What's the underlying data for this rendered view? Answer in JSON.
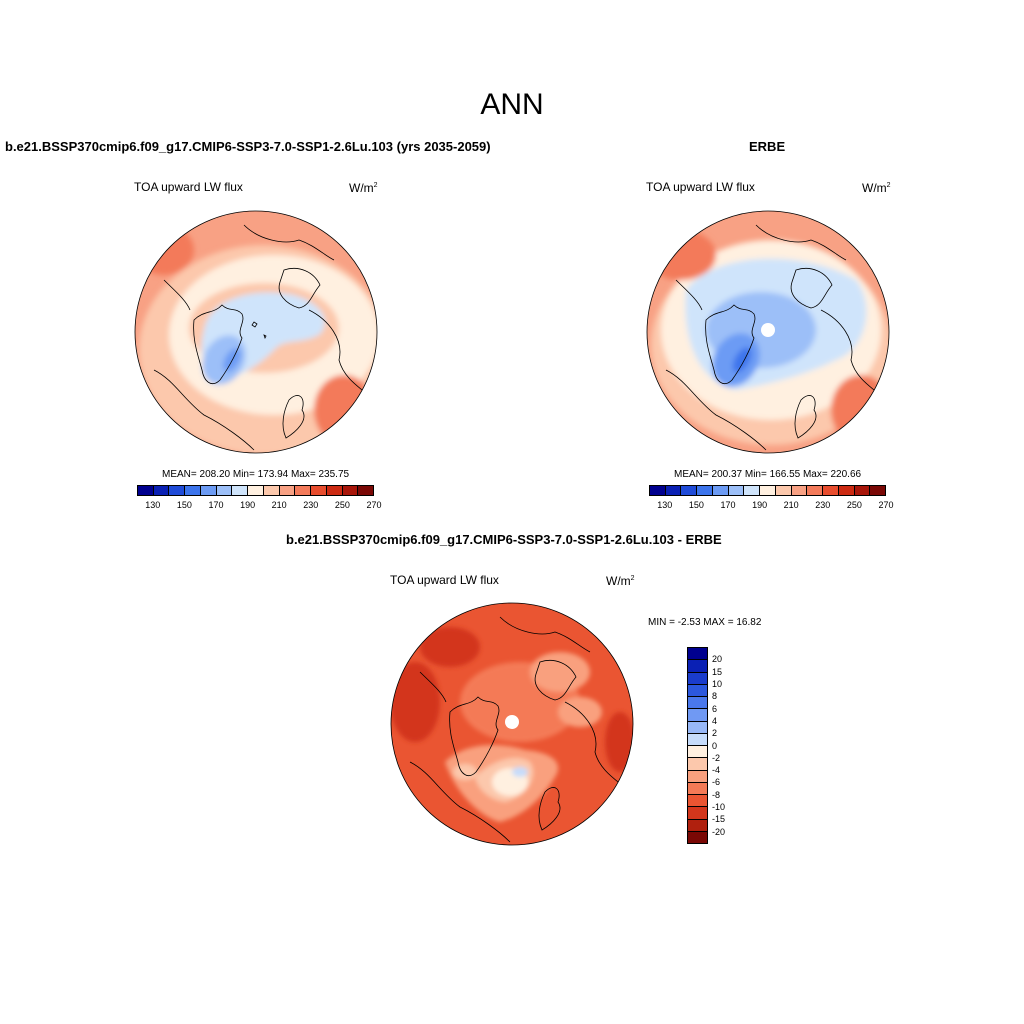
{
  "main_title": "ANN",
  "panels": {
    "model": {
      "title": "b.e21.BSSP370cmip6.f09_g17.CMIP6-SSP3-7.0-SSP1-2.6Lu.103 (yrs 2035-2059)",
      "variable": "TOA upward LW flux",
      "units": "W/m",
      "units_sup": "2",
      "stats": "MEAN= 208.20  Min= 173.94  Max= 235.75"
    },
    "obs": {
      "title": "ERBE",
      "variable": "TOA upward LW flux",
      "units": "W/m",
      "units_sup": "2",
      "stats": "MEAN= 200.37  Min= 166.55  Max= 220.66"
    },
    "diff": {
      "title": "b.e21.BSSP370cmip6.f09_g17.CMIP6-SSP3-7.0-SSP1-2.6Lu.103 - ERBE",
      "variable": "TOA upward LW flux",
      "units": "W/m",
      "units_sup": "2",
      "stats": "MIN =  -2.53 MAX =  16.82"
    }
  },
  "colorbar_abs": {
    "colors": [
      "#00008f",
      "#0a20b4",
      "#1f4bd8",
      "#3c74ec",
      "#6c9bf4",
      "#9cbff8",
      "#cfe4fb",
      "#fff0e0",
      "#fcc8ac",
      "#f8a184",
      "#f37a5a",
      "#e84d2e",
      "#cc2a12",
      "#a8160a",
      "#7a0805"
    ],
    "labels": [
      "130",
      "150",
      "170",
      "190",
      "210",
      "230",
      "250",
      "270"
    ]
  },
  "colorbar_diff": {
    "colors": [
      "#00008f",
      "#0a20b4",
      "#1a3ccc",
      "#2c58de",
      "#4a78ec",
      "#7099f3",
      "#98b8f7",
      "#c6dcfb",
      "#fff0e0",
      "#fcc8ac",
      "#f9a07e",
      "#f47a56",
      "#ea5532",
      "#d3361c",
      "#b0200e",
      "#7a0805"
    ],
    "labels": [
      "20",
      "15",
      "10",
      "8",
      "6",
      "4",
      "2",
      "0",
      "-2",
      "-4",
      "-6",
      "-8",
      "-10",
      "-15",
      "-20"
    ]
  }
}
